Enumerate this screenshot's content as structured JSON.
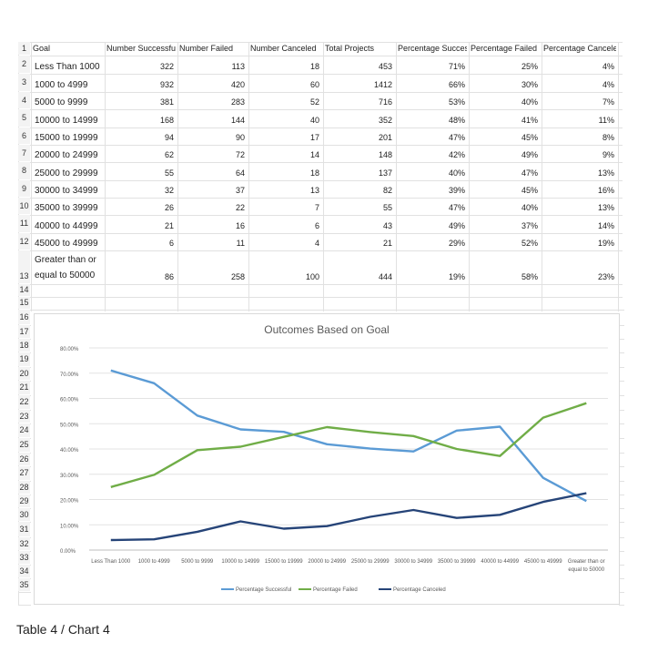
{
  "table": {
    "headers": [
      "Goal",
      "Number Successful",
      "Number Failed",
      "Number Canceled",
      "Total Projects",
      "Percentage Successful",
      "Percentage Failed",
      "Percentage Canceled"
    ],
    "rows": [
      {
        "goal": "Less Than 1000",
        "successful": "322",
        "failed": "113",
        "canceled": "18",
        "total": "453",
        "pct_successful": "71%",
        "pct_failed": "25%",
        "pct_canceled": "4%"
      },
      {
        "goal": "1000 to 4999",
        "successful": "932",
        "failed": "420",
        "canceled": "60",
        "total": "1412",
        "pct_successful": "66%",
        "pct_failed": "30%",
        "pct_canceled": "4%"
      },
      {
        "goal": "5000 to 9999",
        "successful": "381",
        "failed": "283",
        "canceled": "52",
        "total": "716",
        "pct_successful": "53%",
        "pct_failed": "40%",
        "pct_canceled": "7%"
      },
      {
        "goal": "10000 to 14999",
        "successful": "168",
        "failed": "144",
        "canceled": "40",
        "total": "352",
        "pct_successful": "48%",
        "pct_failed": "41%",
        "pct_canceled": "11%"
      },
      {
        "goal": "15000 to 19999",
        "successful": "94",
        "failed": "90",
        "canceled": "17",
        "total": "201",
        "pct_successful": "47%",
        "pct_failed": "45%",
        "pct_canceled": "8%"
      },
      {
        "goal": "20000 to 24999",
        "successful": "62",
        "failed": "72",
        "canceled": "14",
        "total": "148",
        "pct_successful": "42%",
        "pct_failed": "49%",
        "pct_canceled": "9%"
      },
      {
        "goal": "25000 to 29999",
        "successful": "55",
        "failed": "64",
        "canceled": "18",
        "total": "137",
        "pct_successful": "40%",
        "pct_failed": "47%",
        "pct_canceled": "13%"
      },
      {
        "goal": "30000 to 34999",
        "successful": "32",
        "failed": "37",
        "canceled": "13",
        "total": "82",
        "pct_successful": "39%",
        "pct_failed": "45%",
        "pct_canceled": "16%"
      },
      {
        "goal": "35000 to 39999",
        "successful": "26",
        "failed": "22",
        "canceled": "7",
        "total": "55",
        "pct_successful": "47%",
        "pct_failed": "40%",
        "pct_canceled": "13%"
      },
      {
        "goal": "40000 to 44999",
        "successful": "21",
        "failed": "16",
        "canceled": "6",
        "total": "43",
        "pct_successful": "49%",
        "pct_failed": "37%",
        "pct_canceled": "14%"
      },
      {
        "goal": "45000 to 49999",
        "successful": "6",
        "failed": "11",
        "canceled": "4",
        "total": "21",
        "pct_successful": "29%",
        "pct_failed": "52%",
        "pct_canceled": "19%"
      },
      {
        "goal": "Greater than or equal to 50000",
        "successful": "86",
        "failed": "258",
        "canceled": "100",
        "total": "444",
        "pct_successful": "19%",
        "pct_failed": "58%",
        "pct_canceled": "23%"
      }
    ]
  },
  "row_numbers": [
    "1",
    "2",
    "3",
    "4",
    "5",
    "6",
    "7",
    "8",
    "9",
    "10",
    "11",
    "12",
    "13",
    "14",
    "15",
    "16",
    "17",
    "18",
    "19",
    "20",
    "21",
    "22",
    "23",
    "24",
    "25",
    "26",
    "27",
    "28",
    "29",
    "30",
    "31",
    "32",
    "33",
    "34",
    "35"
  ],
  "chart_data": {
    "type": "line",
    "title": "Outcomes Based on Goal",
    "categories": [
      "Less Than 1000",
      "1000 to 4999",
      "5000 to 9999",
      "10000 to 14999",
      "15000 to 19999",
      "20000 to 24999",
      "25000 to 29999",
      "30000 to 34999",
      "35000 to 39999",
      "40000 to 44999",
      "45000 to 49999",
      "Greater than or equal to 50000"
    ],
    "category_lines": [
      [
        "Less Than 1000"
      ],
      [
        "1000 to 4999"
      ],
      [
        "5000 to 9999"
      ],
      [
        "10000 to 14999"
      ],
      [
        "15000 to 19999"
      ],
      [
        "20000 to 24999"
      ],
      [
        "25000 to 29999"
      ],
      [
        "30000 to 34999"
      ],
      [
        "35000 to 39999"
      ],
      [
        "40000 to 44999"
      ],
      [
        "45000 to 49999"
      ],
      [
        "Greater than or",
        "equal to 50000"
      ]
    ],
    "series": [
      {
        "name": "Percentage Successful",
        "color": "#5b9bd5",
        "values": [
          71.08,
          66.01,
          53.21,
          47.73,
          46.77,
          41.89,
          40.15,
          39.02,
          47.27,
          48.84,
          28.57,
          19.37
        ]
      },
      {
        "name": "Percentage Failed",
        "color": "#70ad47",
        "values": [
          24.94,
          29.75,
          39.53,
          40.91,
          44.78,
          48.65,
          46.72,
          45.12,
          40.0,
          37.21,
          52.38,
          58.11
        ]
      },
      {
        "name": "Percentage Canceled",
        "color": "#264478",
        "values": [
          3.97,
          4.25,
          7.26,
          11.36,
          8.46,
          9.46,
          13.14,
          15.85,
          12.73,
          13.95,
          19.05,
          22.52
        ]
      }
    ],
    "ylim": [
      0,
      80
    ],
    "yticks": [
      "0.00%",
      "10.00%",
      "20.00%",
      "30.00%",
      "40.00%",
      "50.00%",
      "60.00%",
      "70.00%",
      "80.00%"
    ],
    "grid": true,
    "legend": "bottom"
  },
  "caption": "Table 4 / Chart 4"
}
